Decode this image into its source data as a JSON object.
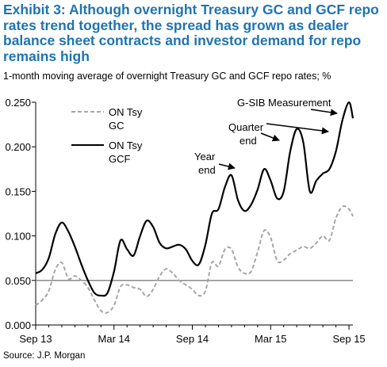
{
  "title": "Exhibit 3: Although overnight Treasury GC and GCF repo rates trend together, the spread has grown as dealer balance sheet contracts and investor demand for repo remains high",
  "subtitle": "1-month moving average of overnight Treasury GC and GCF repo rates; %",
  "source": "Source: J.P. Morgan",
  "colors": {
    "title": "#1f74b1",
    "gc": "#a6a6a6",
    "gcf": "#000000",
    "ref_line": "#7f7f7f"
  },
  "chart_data": {
    "type": "line",
    "x_ticks": [
      "Sep 13",
      "Mar 14",
      "Sep 14",
      "Mar 15",
      "Sep 15"
    ],
    "y_ticks": [
      "0.250",
      "0.200",
      "0.150",
      "0.100",
      "0.050",
      "0.000"
    ],
    "ylim": [
      0,
      0.25
    ],
    "x_range": [
      "Sep 13",
      "Sep 15"
    ],
    "grid": false,
    "legend_position": "top-left",
    "reference_line": 0.05,
    "series": [
      {
        "name": "ON Tsy GC",
        "style": "dashed",
        "x": [
          0,
          0.5,
          1,
          1.5,
          2,
          2.5,
          3,
          3.5,
          4,
          4.5,
          5,
          5.5,
          6,
          6.5,
          7,
          7.5,
          8,
          8.5,
          9,
          9.5,
          10,
          10.5,
          11,
          11.5,
          12,
          12.5,
          13,
          13.5,
          14,
          14.5,
          15,
          15.5,
          16,
          16.5,
          17,
          17.5,
          18,
          18.5,
          19,
          19.5,
          20,
          20.5,
          21,
          21.5,
          22,
          22.5,
          23,
          23.5,
          24,
          24.3
        ],
        "y": [
          0.022,
          0.028,
          0.038,
          0.062,
          0.07,
          0.052,
          0.055,
          0.05,
          0.042,
          0.028,
          0.016,
          0.014,
          0.022,
          0.043,
          0.045,
          0.042,
          0.04,
          0.032,
          0.04,
          0.055,
          0.063,
          0.058,
          0.05,
          0.045,
          0.04,
          0.033,
          0.038,
          0.07,
          0.066,
          0.085,
          0.085,
          0.065,
          0.058,
          0.06,
          0.082,
          0.106,
          0.098,
          0.072,
          0.073,
          0.08,
          0.084,
          0.088,
          0.086,
          0.092,
          0.1,
          0.095,
          0.12,
          0.133,
          0.13,
          0.122
        ]
      },
      {
        "name": "ON Tsy GCF",
        "style": "solid",
        "x": [
          0,
          0.5,
          1,
          1.5,
          2,
          2.5,
          3,
          3.5,
          4,
          4.5,
          5,
          5.5,
          6,
          6.5,
          7,
          7.5,
          8,
          8.5,
          9,
          9.5,
          10,
          10.5,
          11,
          11.5,
          12,
          12.5,
          13,
          13.5,
          14,
          14.5,
          15,
          15.5,
          16,
          16.5,
          17,
          17.5,
          18,
          18.5,
          19,
          19.5,
          20,
          20.5,
          21,
          21.5,
          22,
          22.5,
          23,
          23.5,
          24,
          24.3
        ],
        "y": [
          0.058,
          0.062,
          0.075,
          0.102,
          0.115,
          0.105,
          0.088,
          0.068,
          0.05,
          0.036,
          0.033,
          0.036,
          0.06,
          0.095,
          0.085,
          0.078,
          0.1,
          0.117,
          0.11,
          0.092,
          0.086,
          0.088,
          0.09,
          0.085,
          0.072,
          0.068,
          0.09,
          0.125,
          0.13,
          0.155,
          0.168,
          0.14,
          0.128,
          0.135,
          0.152,
          0.175,
          0.162,
          0.142,
          0.15,
          0.195,
          0.22,
          0.205,
          0.15,
          0.162,
          0.17,
          0.175,
          0.195,
          0.23,
          0.25,
          0.232
        ]
      }
    ],
    "legend": [
      {
        "label": "ON Tsy GC"
      },
      {
        "label": "ON Tsy GCF"
      }
    ],
    "annotations": [
      {
        "text": "G-SIB Measurement"
      },
      {
        "text": "Quarter end"
      },
      {
        "text": "Year end"
      }
    ]
  }
}
